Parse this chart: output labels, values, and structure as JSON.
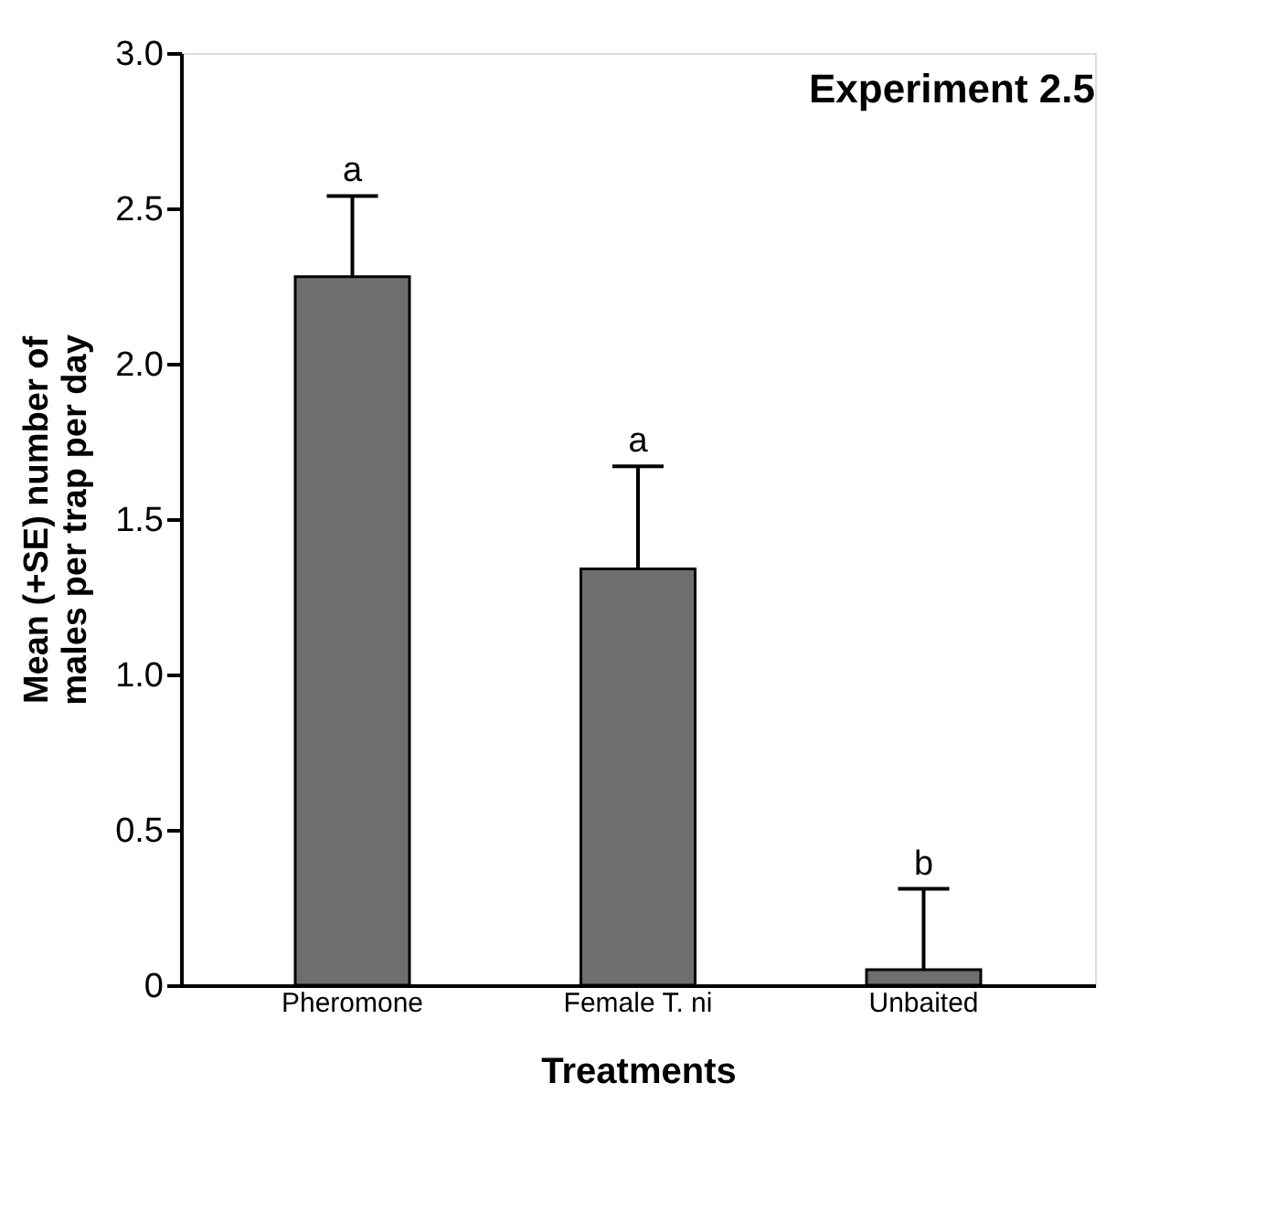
{
  "chart_data": {
    "type": "bar",
    "title": "Experiment 2.5",
    "categories": [
      "Pheromone",
      "Female T. ni",
      "Unbaited"
    ],
    "values": [
      2.28,
      1.34,
      0.05
    ],
    "errors": [
      [
        2.28,
        2.54
      ],
      [
        1.34,
        1.67
      ],
      [
        0.05,
        0.31
      ]
    ],
    "color": "#6e6e6e",
    "xlabel": "Treatments",
    "ylabel": "Mean (+SE) number of\nmales per trap per day",
    "ylim": [
      0,
      3.0
    ],
    "yticks": [
      0,
      {
        "value": 0.5,
        "label": "0.5"
      },
      {
        "value": 1.0,
        "label": "1.0"
      },
      {
        "value": 1.5,
        "label": "1.5"
      },
      {
        "value": 2.0,
        "label": "2.0"
      },
      {
        "value": 2.5,
        "label": "2.5"
      },
      {
        "value": 3.0,
        "label": "3.0"
      }
    ],
    "grid": false,
    "annotations": [
      "a",
      "a",
      "b"
    ]
  }
}
